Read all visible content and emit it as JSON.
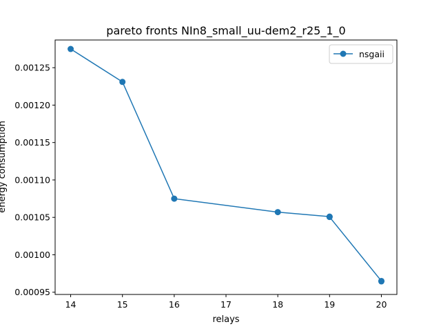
{
  "chart_data": {
    "type": "line",
    "title": "pareto fronts NIn8_small_uu-dem2_r25_1_0",
    "xlabel": "relays",
    "ylabel": "energy consumption",
    "xlim": [
      13.7,
      20.3
    ],
    "ylim": [
      0.000947,
      0.001287
    ],
    "xticks": [
      14,
      15,
      16,
      17,
      18,
      19,
      20
    ],
    "yticks": [
      0.00095,
      0.001,
      0.00105,
      0.0011,
      0.00115,
      0.0012,
      0.00125
    ],
    "xtick_labels": [
      "14",
      "15",
      "16",
      "17",
      "18",
      "19",
      "20"
    ],
    "ytick_labels": [
      "0.00095",
      "0.00100",
      "0.00105",
      "0.00110",
      "0.00115",
      "0.00120",
      "0.00125"
    ],
    "grid": false,
    "legend_position": "top-right",
    "series": [
      {
        "name": "nsgaii",
        "color": "#1f77b4",
        "marker": "circle",
        "x": [
          14,
          15,
          16,
          18,
          19,
          19,
          20,
          20
        ],
        "y": [
          0.001275,
          0.001231,
          0.001075,
          0.001057,
          0.001051,
          0.0010505,
          0.000965,
          0.0009645
        ]
      }
    ]
  }
}
